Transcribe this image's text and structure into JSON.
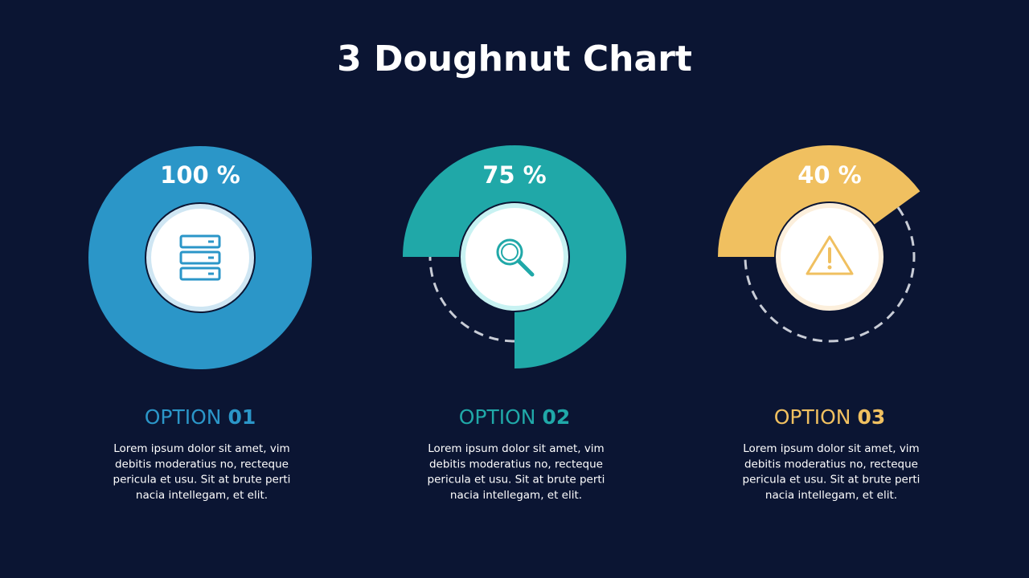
{
  "title": "3 Doughnut Chart",
  "chart_data": [
    {
      "type": "doughnut",
      "values": [
        100
      ],
      "value_labels": [
        "100 %"
      ],
      "color": "#2b96c8",
      "ring_color": "#cfe6f3",
      "icon": "server",
      "option": "OPTION",
      "option_number": "01",
      "text_lines": [
        "Lorem ipsum dolor sit amet, vim",
        "debitis moderatius no, recteque",
        "pericula et usu. Sit at brute perti",
        "nacia intellegam, et elit."
      ]
    },
    {
      "type": "doughnut",
      "values": [
        75
      ],
      "value_labels": [
        "75 %"
      ],
      "color": "#20a8a8",
      "ring_color": "#c8f2f2",
      "icon": "search",
      "option": "OPTION",
      "option_number": "02",
      "text_lines": [
        "Lorem ipsum dolor sit amet, vim",
        "debitis moderatius no, recteque",
        "pericula et usu. Sit at brute perti",
        "nacia intellegam, et elit."
      ]
    },
    {
      "type": "doughnut",
      "values": [
        40
      ],
      "value_labels": [
        "40 %"
      ],
      "color": "#f0c060",
      "ring_color": "#fcefdc",
      "icon": "warning",
      "option": "OPTION",
      "option_number": "03",
      "text_lines": [
        "Lorem ipsum dolor sit amet, vim",
        "debitis moderatius no, recteque",
        "pericula et usu. Sit at brute perti",
        "nacia intellegam, et elit."
      ]
    }
  ]
}
